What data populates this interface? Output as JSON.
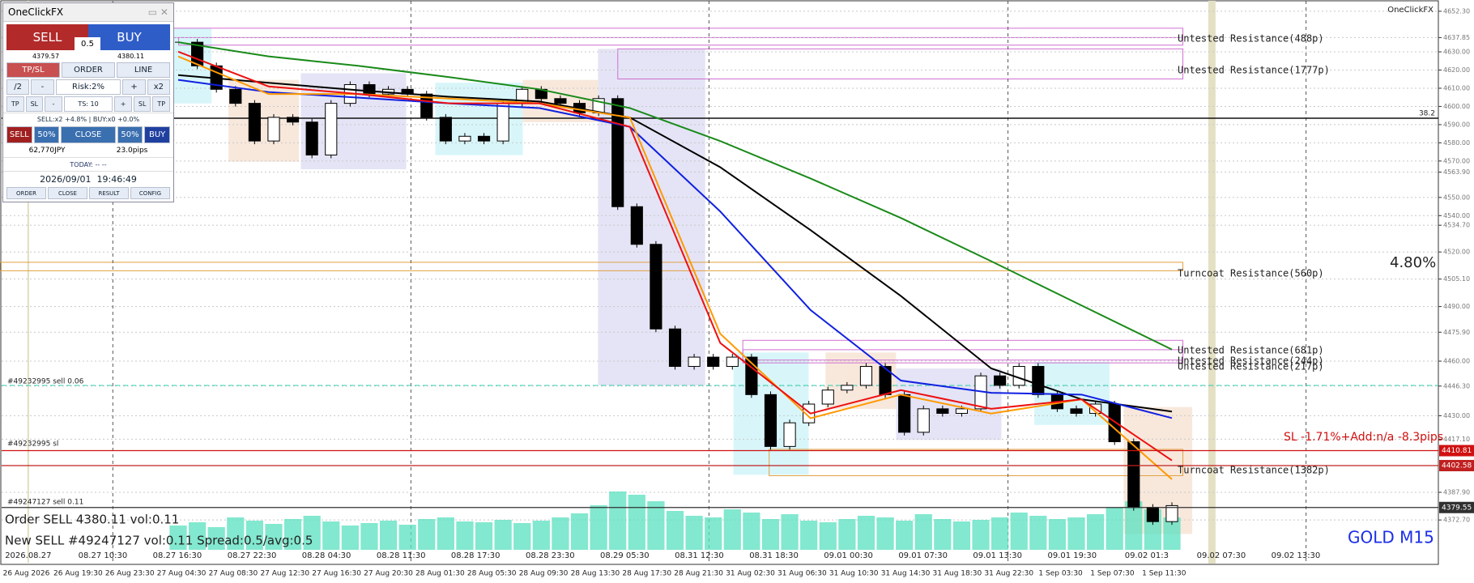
{
  "panel": {
    "title": "OneClickFX",
    "sell": "SELL",
    "buy": "BUY",
    "lot": "0.5",
    "bid": "4379.57",
    "ask": "4380.11",
    "modes": [
      "TP/SL",
      "ORDER",
      "LINE"
    ],
    "risk_row": [
      "/2",
      "-",
      "Risk:2%",
      "+",
      "x2"
    ],
    "ts_row": [
      "TP",
      "SL",
      "-",
      "TS: 10",
      "+",
      "SL",
      "TP"
    ],
    "position_status": "SELL:x2 +4.8% | BUY:x0 +0.0%",
    "close_row": [
      "SELL",
      "50%",
      "CLOSE",
      "50%",
      "BUY"
    ],
    "profit": "62,770JPY",
    "pips": "23.0pips",
    "today": "TODAY: -- --",
    "datetime": "2026/09/01  19:46:49",
    "footer_buttons": [
      "ORDER",
      "CLOSE",
      "RESULT",
      "CONFIG"
    ]
  },
  "chart_data": {
    "type": "candlestick",
    "brand": "OneClickFX",
    "symbol_label": "GOLD M15",
    "ylim": [
      4356.3,
      4658.5
    ],
    "yticks": [
      {
        "value": 4652.3,
        "label": "4652.30"
      },
      {
        "value": 4637.85,
        "label": "4637.85"
      },
      {
        "value": 4630,
        "label": "4630.00"
      },
      {
        "value": 4620,
        "label": "4620.00"
      },
      {
        "value": 4610,
        "label": "4610.00"
      },
      {
        "value": 4600,
        "label": "4600.00"
      },
      {
        "value": 4590,
        "label": "4590.00"
      },
      {
        "value": 4580,
        "label": "4580.00"
      },
      {
        "value": 4570,
        "label": "4570.00"
      },
      {
        "value": 4563.9,
        "label": "4563.90"
      },
      {
        "value": 4550,
        "label": "4550.00"
      },
      {
        "value": 4540,
        "label": "4540.00"
      },
      {
        "value": 4534.7,
        "label": "4534.70"
      },
      {
        "value": 4520,
        "label": "4520.00"
      },
      {
        "value": 4505.1,
        "label": "4505.10"
      },
      {
        "value": 4490,
        "label": "4490.00"
      },
      {
        "value": 4475.9,
        "label": "4475.90"
      },
      {
        "value": 4460,
        "label": "4460.00"
      },
      {
        "value": 4446.3,
        "label": "4446.30"
      },
      {
        "value": 4430,
        "label": "4430.00"
      },
      {
        "value": 4417.1,
        "label": "4417.10"
      },
      {
        "value": 4387.9,
        "label": "4387.90"
      },
      {
        "value": 4372.7,
        "label": "4372.70"
      }
    ],
    "grid": true,
    "price_tags": [
      {
        "value": 4410.81,
        "label": "4410.81",
        "color": "#d01010"
      },
      {
        "value": 4402.58,
        "label": "4402.58",
        "color": "#c02020"
      },
      {
        "value": 4379.55,
        "label": "4379.55",
        "color": "#303030"
      }
    ],
    "fib_level": {
      "value": 4593.5,
      "label": "38.2"
    },
    "close": [
      4635.3,
      4622.3,
      4609.4,
      4601.7,
      4581.0,
      4594.0,
      4591.4,
      4573.3,
      4601.7,
      4612.0,
      4606.8,
      4609.4,
      4606.8,
      4594.0,
      4581.0,
      4583.6,
      4581.0,
      4601.7,
      4609.4,
      4604.3,
      4601.7,
      4596.5,
      4604.3,
      4544.9,
      4524.2,
      4477.7,
      4457.1,
      4462.2,
      4457.1,
      4462.2,
      4441.6,
      4413.1,
      4426.1,
      4436.4,
      4444.1,
      4446.7,
      4457.1,
      4441.6,
      4420.9,
      4433.8,
      4431.3,
      4433.8,
      4451.9,
      4446.7,
      4457.1,
      4441.6,
      4433.8,
      4431.3,
      4436.4,
      4415.7,
      4379.6,
      4371.8,
      4380.6
    ],
    "volume": [
      30,
      34,
      28,
      40,
      36,
      32,
      38,
      42,
      35,
      30,
      33,
      36,
      31,
      38,
      40,
      35,
      34,
      37,
      33,
      36,
      40,
      45,
      55,
      72,
      68,
      60,
      48,
      42,
      40,
      50,
      46,
      38,
      44,
      36,
      34,
      38,
      42,
      40,
      36,
      44,
      38,
      35,
      37,
      40,
      46,
      42,
      38,
      40,
      44,
      52,
      60,
      50,
      40
    ],
    "moving_averages": [
      {
        "color": "#1a8a1a",
        "values": [
          4635.3,
          4627.5,
          4622.3,
          4616.1,
          4609.4,
          4599.1,
          4581.0,
          4560.4,
          4538.7,
          4514.9,
          4490.6,
          4466.4
        ]
      },
      {
        "color": "#000000",
        "values": [
          4617.2,
          4613.0,
          4608.9,
          4605.3,
          4602.7,
          4593.9,
          4566.6,
          4532.0,
          4495.8,
          4456.0,
          4439.0,
          4432.3
        ]
      },
      {
        "color": "#1020e0",
        "values": [
          4614.6,
          4607.9,
          4604.8,
          4601.7,
          4599.1,
          4588.8,
          4542.3,
          4488.1,
          4449.3,
          4442.6,
          4441.6,
          4428.7
        ]
      },
      {
        "color": "#ff9900",
        "values": [
          4627.5,
          4606.8,
          4606.8,
          4604.3,
          4601.7,
          4593.9,
          4475.1,
          4428.6,
          4441.6,
          4431.2,
          4439.0,
          4395.1
        ]
      },
      {
        "color": "#ee1010",
        "values": [
          4630.1,
          4611.0,
          4606.8,
          4601.7,
          4601.7,
          4588.8,
          4470.0,
          4431.2,
          4444.1,
          4433.8,
          4439.0,
          4405.4
        ]
      }
    ],
    "upper_time_labels": [
      "2026.08.27",
      "08.27 10:30",
      "08.27 16:30",
      "08.27 22:30",
      "08.28 04:30",
      "08.28 11:30",
      "08.28 17:30",
      "08.28 23:30",
      "08.29 05:30",
      "08.31 12:30",
      "08.31 18:30",
      "09.01 00:30",
      "09.01 07:30",
      "09.01 13:30",
      "09.01 19:30",
      "09.02 01:3",
      "09.02 07:30",
      "09.02 13:30"
    ],
    "time_labels": [
      "26 Aug 2026",
      "26 Aug 19:30",
      "26 Aug 23:30",
      "27 Aug 04:30",
      "27 Aug 08:30",
      "27 Aug 12:30",
      "27 Aug 16:30",
      "27 Aug 20:30",
      "28 Aug 01:30",
      "28 Aug 05:30",
      "28 Aug 09:30",
      "28 Aug 13:30",
      "28 Aug 17:30",
      "28 Aug 21:30",
      "31 Aug 02:30",
      "31 Aug 06:30",
      "31 Aug 10:30",
      "31 Aug 14:30",
      "31 Aug 18:30",
      "31 Aug 22:30",
      "1 Sep 03:30",
      "1 Sep 07:30",
      "1 Sep 11:30"
    ],
    "annotations": {
      "res_488": "Untested Resistance(488p)",
      "res_1777": "Untested Resistance(1777p)",
      "turncoat_560": "Turncoat Resistance(560p)",
      "res_681": "Untested Resistance(681p)",
      "res_244": "Untested Resistance(244p)",
      "res_217": "Untested Resistance(217p)",
      "turncoat_1382": "Turncoat Resistance(1382p)",
      "gain": "4.80%",
      "sl_info": "SL -1.71%+Add:n/a -8.3pips",
      "order_1": "#49232995 sell 0.06",
      "order_1_sl": "#49232995 sl",
      "order_2": "#49247127 sell 0.11",
      "log_1": "Order SELL 4380.11 vol:0.11",
      "log_2": "New SELL #49247127 vol:0.11 Spread:0.5/avg:0.5"
    }
  }
}
